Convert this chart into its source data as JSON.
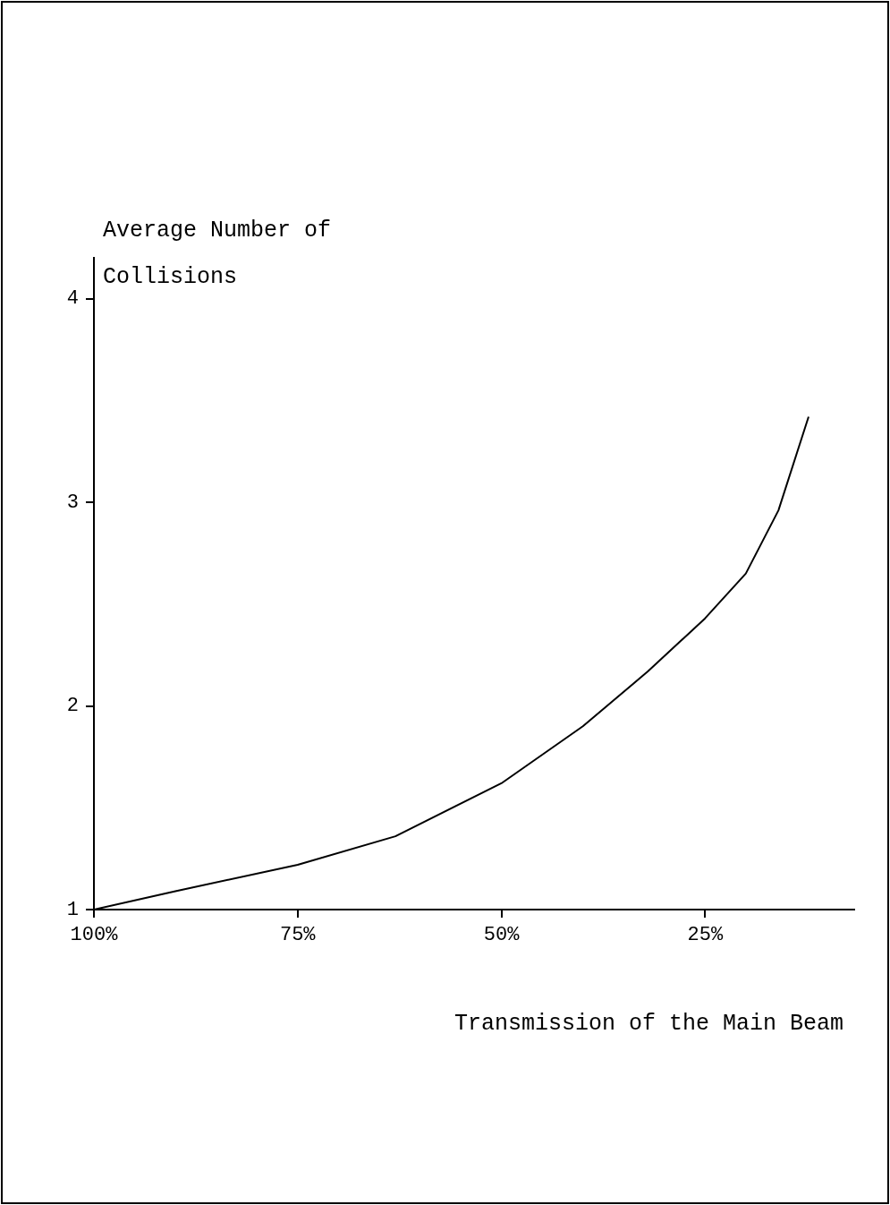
{
  "chart_data": {
    "type": "line",
    "xlabel": "Transmission of the Main Beam",
    "ylabel": "Average Number of Collisions",
    "x": [
      100,
      90,
      75,
      63,
      50,
      40,
      32,
      25,
      20,
      16,
      12.3
    ],
    "values": [
      1,
      1.09,
      1.22,
      1.36,
      1.62,
      1.9,
      2.17,
      2.43,
      2.65,
      2.96,
      3.42
    ],
    "color": "#000000",
    "marker": "none",
    "line_style": "solid",
    "grid": false,
    "legend": false,
    "xlim": [
      100,
      6.7
    ],
    "xticks": [
      {
        "value": 100,
        "label": "100%"
      },
      {
        "value": 75,
        "label": "75%"
      },
      {
        "value": 50,
        "label": "50%"
      },
      {
        "value": 25,
        "label": "25%"
      }
    ],
    "ylim": [
      1,
      4.2
    ],
    "yticks": [
      1,
      2,
      3,
      4
    ]
  }
}
